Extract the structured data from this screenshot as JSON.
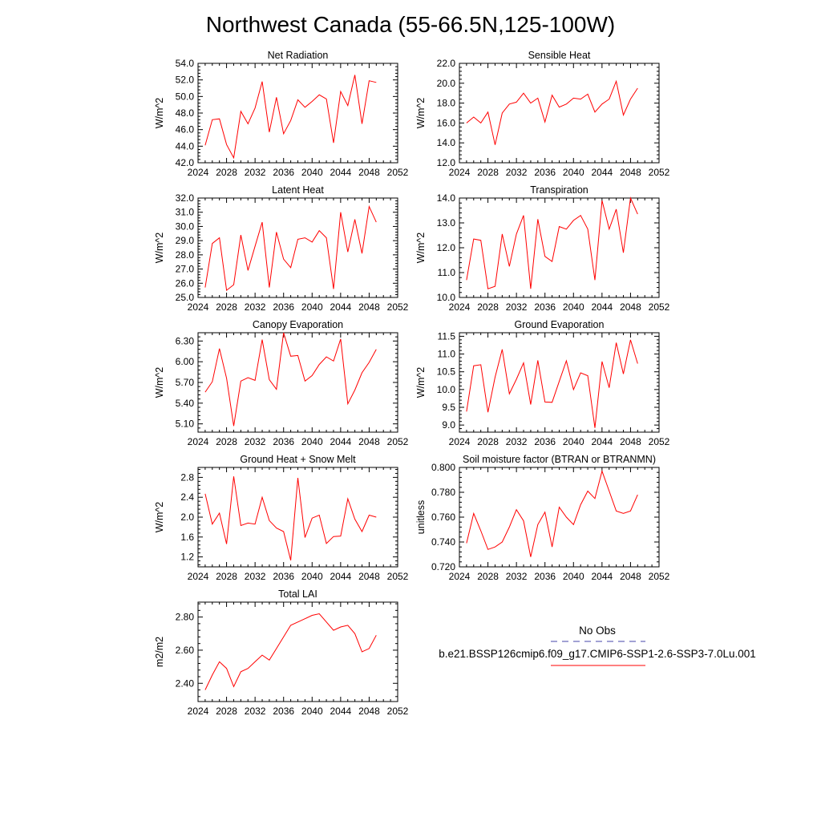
{
  "page": {
    "title": "Northwest Canada (55-66.5N,125-100W)"
  },
  "legend": {
    "entries": [
      {
        "label": "No Obs",
        "style": "dashed",
        "color": "#4444aa"
      },
      {
        "label": "b.e21.BSSP126cmip6.f09_g17.CMIP6-SSP1-2.6-SSP3-7.0Lu.001",
        "style": "solid",
        "color": "#ff0000"
      }
    ]
  },
  "chart_data": [
    {
      "type": "line",
      "title": "Net Radiation",
      "ylabel": "W/m^2",
      "xlim": [
        2024,
        2052
      ],
      "ylim": [
        42,
        54
      ],
      "xticks": [
        2024,
        2028,
        2032,
        2036,
        2040,
        2044,
        2048,
        2052
      ],
      "yticks": [
        42,
        44,
        46,
        48,
        50,
        52,
        54
      ],
      "ytick_labels": [
        "42.0",
        "44.0",
        "46.0",
        "48.0",
        "50.0",
        "52.0",
        "54.0"
      ],
      "series": [
        {
          "color": "#ff0000",
          "x": [
            2025,
            2026,
            2027,
            2028,
            2029,
            2030,
            2031,
            2032,
            2033,
            2034,
            2035,
            2036,
            2037,
            2038,
            2039,
            2040,
            2041,
            2042,
            2043,
            2044,
            2045,
            2046,
            2047,
            2048,
            2049
          ],
          "y": [
            44.1,
            47.2,
            47.3,
            44.2,
            42.6,
            48.2,
            46.7,
            48.6,
            51.8,
            45.7,
            49.9,
            45.5,
            47.1,
            49.6,
            48.7,
            49.4,
            50.2,
            49.7,
            44.4,
            50.6,
            48.9,
            52.6,
            46.7,
            51.9,
            51.7
          ]
        }
      ]
    },
    {
      "type": "line",
      "title": "Sensible Heat",
      "ylabel": "W/m^2",
      "xlim": [
        2024,
        2052
      ],
      "ylim": [
        12,
        22
      ],
      "xticks": [
        2024,
        2028,
        2032,
        2036,
        2040,
        2044,
        2048,
        2052
      ],
      "yticks": [
        12,
        14,
        16,
        18,
        20,
        22
      ],
      "ytick_labels": [
        "12.0",
        "14.0",
        "16.0",
        "18.0",
        "20.0",
        "22.0"
      ],
      "series": [
        {
          "color": "#ff0000",
          "x": [
            2025,
            2026,
            2027,
            2028,
            2029,
            2030,
            2031,
            2032,
            2033,
            2034,
            2035,
            2036,
            2037,
            2038,
            2039,
            2040,
            2041,
            2042,
            2043,
            2044,
            2045,
            2046,
            2047,
            2048,
            2049
          ],
          "y": [
            16.0,
            16.6,
            16.0,
            17.1,
            13.8,
            17.0,
            17.9,
            18.1,
            19.0,
            18.0,
            18.5,
            16.1,
            18.8,
            17.6,
            17.9,
            18.5,
            18.4,
            18.9,
            17.1,
            17.9,
            18.4,
            20.2,
            16.8,
            18.4,
            19.5
          ]
        }
      ]
    },
    {
      "type": "line",
      "title": "Latent Heat",
      "ylabel": "W/m^2",
      "xlim": [
        2024,
        2052
      ],
      "ylim": [
        25,
        32
      ],
      "xticks": [
        2024,
        2028,
        2032,
        2036,
        2040,
        2044,
        2048,
        2052
      ],
      "yticks": [
        25,
        26,
        27,
        28,
        29,
        30,
        31,
        32
      ],
      "ytick_labels": [
        "25.0",
        "26.0",
        "27.0",
        "28.0",
        "29.0",
        "30.0",
        "31.0",
        "32.0"
      ],
      "series": [
        {
          "color": "#ff0000",
          "x": [
            2025,
            2026,
            2027,
            2028,
            2029,
            2030,
            2031,
            2032,
            2033,
            2034,
            2035,
            2036,
            2037,
            2038,
            2039,
            2040,
            2041,
            2042,
            2043,
            2044,
            2045,
            2046,
            2047,
            2048,
            2049
          ],
          "y": [
            25.7,
            28.8,
            29.2,
            25.5,
            25.9,
            29.4,
            26.9,
            28.6,
            30.3,
            25.7,
            29.6,
            27.7,
            27.1,
            29.1,
            29.2,
            28.9,
            29.7,
            29.2,
            25.6,
            31.0,
            28.2,
            30.5,
            28.1,
            31.4,
            30.3
          ]
        }
      ]
    },
    {
      "type": "line",
      "title": "Transpiration",
      "ylabel": "W/m^2",
      "xlim": [
        2024,
        2052
      ],
      "ylim": [
        10,
        14
      ],
      "xticks": [
        2024,
        2028,
        2032,
        2036,
        2040,
        2044,
        2048,
        2052
      ],
      "yticks": [
        10,
        11,
        12,
        13,
        14
      ],
      "ytick_labels": [
        "10.0",
        "11.0",
        "12.0",
        "13.0",
        "14.0"
      ],
      "series": [
        {
          "color": "#ff0000",
          "x": [
            2025,
            2026,
            2027,
            2028,
            2029,
            2030,
            2031,
            2032,
            2033,
            2034,
            2035,
            2036,
            2037,
            2038,
            2039,
            2040,
            2041,
            2042,
            2043,
            2044,
            2045,
            2046,
            2047,
            2048,
            2049
          ],
          "y": [
            10.7,
            12.35,
            12.3,
            10.35,
            10.45,
            12.55,
            11.25,
            12.55,
            13.3,
            10.35,
            13.15,
            11.65,
            11.45,
            12.85,
            12.75,
            13.1,
            13.3,
            12.75,
            10.7,
            13.9,
            12.75,
            13.55,
            11.8,
            14.0,
            13.35
          ]
        }
      ]
    },
    {
      "type": "line",
      "title": "Canopy Evaporation",
      "ylabel": "W/m^2",
      "xlim": [
        2024,
        2052
      ],
      "ylim": [
        4.98,
        6.42
      ],
      "xticks": [
        2024,
        2028,
        2032,
        2036,
        2040,
        2044,
        2048,
        2052
      ],
      "yticks": [
        5.1,
        5.4,
        5.7,
        6.0,
        6.3
      ],
      "ytick_labels": [
        "5.10",
        "5.40",
        "5.70",
        "6.00",
        "6.30"
      ],
      "series": [
        {
          "color": "#ff0000",
          "x": [
            2025,
            2026,
            2027,
            2028,
            2029,
            2030,
            2031,
            2032,
            2033,
            2034,
            2035,
            2036,
            2037,
            2038,
            2039,
            2040,
            2041,
            2042,
            2043,
            2044,
            2045,
            2046,
            2047,
            2048,
            2049
          ],
          "y": [
            5.56,
            5.71,
            6.19,
            5.76,
            5.07,
            5.72,
            5.77,
            5.73,
            6.32,
            5.74,
            5.6,
            6.42,
            6.08,
            6.09,
            5.72,
            5.8,
            5.96,
            6.07,
            6.01,
            6.33,
            5.39,
            5.59,
            5.84,
            5.99,
            6.18
          ]
        }
      ]
    },
    {
      "type": "line",
      "title": "Ground Evaporation",
      "ylabel": "W/m^2",
      "xlim": [
        2024,
        2052
      ],
      "ylim": [
        8.8,
        11.6
      ],
      "xticks": [
        2024,
        2028,
        2032,
        2036,
        2040,
        2044,
        2048,
        2052
      ],
      "yticks": [
        9.0,
        9.5,
        10.0,
        10.5,
        11.0,
        11.5
      ],
      "ytick_labels": [
        "9.0",
        "9.5",
        "10.0",
        "10.5",
        "11.0",
        "11.5"
      ],
      "series": [
        {
          "color": "#ff0000",
          "x": [
            2025,
            2026,
            2027,
            2028,
            2029,
            2030,
            2031,
            2032,
            2033,
            2034,
            2035,
            2036,
            2037,
            2038,
            2039,
            2040,
            2041,
            2042,
            2043,
            2044,
            2045,
            2046,
            2047,
            2048,
            2049
          ],
          "y": [
            9.38,
            10.67,
            10.7,
            9.36,
            10.35,
            11.13,
            9.88,
            10.29,
            10.75,
            9.58,
            10.82,
            9.65,
            9.64,
            10.23,
            10.81,
            10.0,
            10.47,
            10.39,
            8.92,
            10.79,
            10.05,
            11.32,
            10.44,
            11.4,
            10.73
          ]
        }
      ]
    },
    {
      "type": "line",
      "title": "Ground Heat + Snow Melt",
      "ylabel": "W/m^2",
      "xlim": [
        2024,
        2052
      ],
      "ylim": [
        1.0,
        3.0
      ],
      "xticks": [
        2024,
        2028,
        2032,
        2036,
        2040,
        2044,
        2048,
        2052
      ],
      "yticks": [
        1.2,
        1.6,
        2.0,
        2.4,
        2.8
      ],
      "ytick_labels": [
        "1.2",
        "1.6",
        "2.0",
        "2.4",
        "2.8"
      ],
      "series": [
        {
          "color": "#ff0000",
          "x": [
            2025,
            2026,
            2027,
            2028,
            2029,
            2030,
            2031,
            2032,
            2033,
            2034,
            2035,
            2036,
            2037,
            2038,
            2039,
            2040,
            2041,
            2042,
            2043,
            2044,
            2045,
            2046,
            2047,
            2048,
            2049
          ],
          "y": [
            2.47,
            1.86,
            2.08,
            1.46,
            2.82,
            1.83,
            1.88,
            1.86,
            2.4,
            1.93,
            1.78,
            1.71,
            1.13,
            2.79,
            1.59,
            1.98,
            2.04,
            1.47,
            1.61,
            1.62,
            2.37,
            1.96,
            1.71,
            2.04,
            2.0
          ]
        }
      ]
    },
    {
      "type": "line",
      "title": "Soil moisture factor (BTRAN or BTRANMN)",
      "ylabel": "unitless",
      "xlim": [
        2024,
        2052
      ],
      "ylim": [
        0.72,
        0.8
      ],
      "xticks": [
        2024,
        2028,
        2032,
        2036,
        2040,
        2044,
        2048,
        2052
      ],
      "yticks": [
        0.72,
        0.74,
        0.76,
        0.78,
        0.8
      ],
      "ytick_labels": [
        "0.720",
        "0.740",
        "0.760",
        "0.780",
        "0.800"
      ],
      "series": [
        {
          "color": "#ff0000",
          "x": [
            2025,
            2026,
            2027,
            2028,
            2029,
            2030,
            2031,
            2032,
            2033,
            2034,
            2035,
            2036,
            2037,
            2038,
            2039,
            2040,
            2041,
            2042,
            2043,
            2044,
            2045,
            2046,
            2047,
            2048,
            2049
          ],
          "y": [
            0.739,
            0.763,
            0.749,
            0.734,
            0.736,
            0.74,
            0.752,
            0.766,
            0.757,
            0.728,
            0.754,
            0.764,
            0.736,
            0.768,
            0.76,
            0.754,
            0.77,
            0.781,
            0.775,
            0.797,
            0.781,
            0.765,
            0.763,
            0.765,
            0.778
          ]
        }
      ]
    },
    {
      "type": "line",
      "title": "Total LAI",
      "ylabel": "m2/m2",
      "xlim": [
        2024,
        2052
      ],
      "ylim": [
        2.29,
        2.89
      ],
      "xticks": [
        2024,
        2028,
        2032,
        2036,
        2040,
        2044,
        2048,
        2052
      ],
      "yticks": [
        2.4,
        2.6,
        2.8
      ],
      "ytick_labels": [
        "2.40",
        "2.60",
        "2.80"
      ],
      "series": [
        {
          "color": "#ff0000",
          "x": [
            2025,
            2026,
            2027,
            2028,
            2029,
            2030,
            2031,
            2032,
            2033,
            2034,
            2035,
            2036,
            2037,
            2038,
            2039,
            2040,
            2041,
            2042,
            2043,
            2044,
            2045,
            2046,
            2047,
            2048,
            2049
          ],
          "y": [
            2.36,
            2.45,
            2.53,
            2.49,
            2.38,
            2.47,
            2.49,
            2.53,
            2.57,
            2.54,
            2.61,
            2.68,
            2.75,
            2.77,
            2.79,
            2.81,
            2.82,
            2.77,
            2.72,
            2.74,
            2.75,
            2.7,
            2.59,
            2.61,
            2.69
          ]
        }
      ]
    }
  ]
}
